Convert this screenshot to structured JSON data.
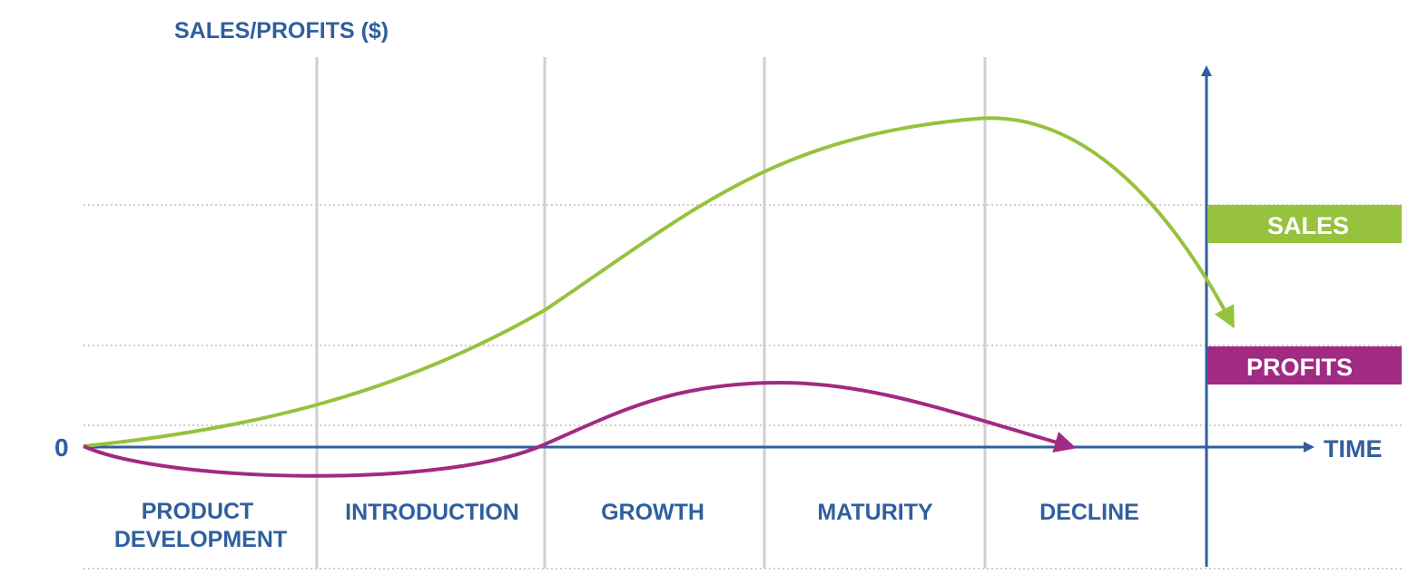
{
  "y_axis_label": "SALES/PROFITS ($)",
  "x_axis_label": "TIME",
  "origin_label": "0",
  "stages": [
    "PRODUCT\nDEVELOPMENT",
    "INTRODUCTION",
    "GROWTH",
    "MATURITY",
    "DECLINE"
  ],
  "legend": [
    {
      "label": "SALES",
      "color": "#96c23d"
    },
    {
      "label": "PROFITS",
      "color": "#a12a82"
    }
  ],
  "colors": {
    "axis": "#2f5f9e",
    "divider": "#cfcfcf",
    "gridline": "#cfcfcf",
    "sales": "#96c23d",
    "profits": "#a12a82"
  }
}
